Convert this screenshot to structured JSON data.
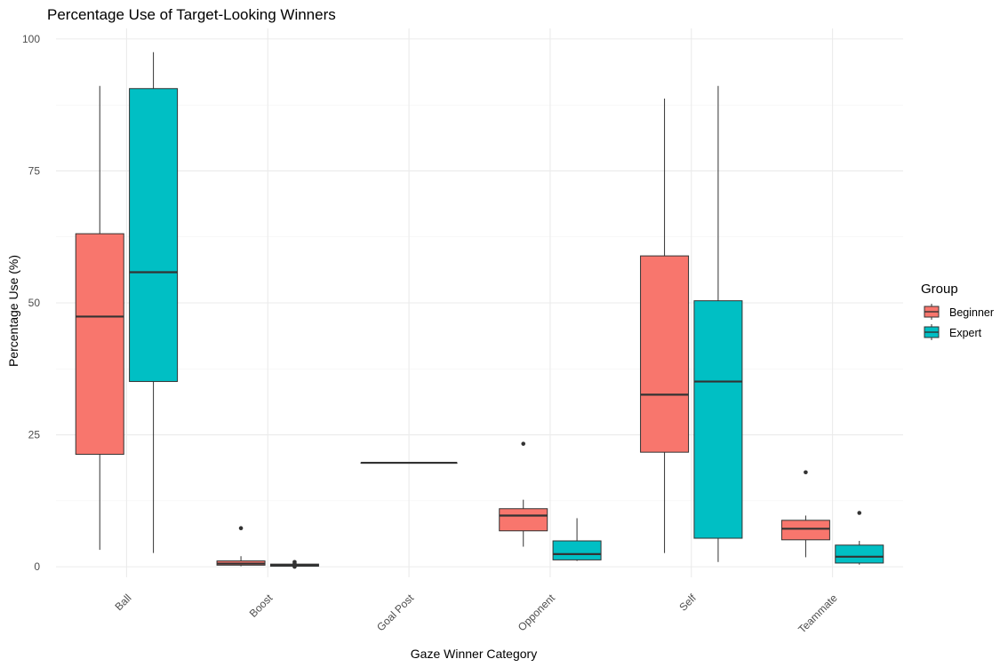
{
  "chart_data": {
    "type": "boxplot",
    "title": "Percentage Use of Target-Looking Winners",
    "xlabel": "Gaze Winner Category",
    "ylabel": "Percentage Use (%)",
    "ylim": [
      -2,
      102
    ],
    "yticks": [
      0,
      25,
      50,
      75,
      100
    ],
    "grid": true,
    "categories": [
      "Ball",
      "Boost",
      "Goal Post",
      "Opponent",
      "Self",
      "Teammate"
    ],
    "legend": {
      "title": "Group",
      "position": "right",
      "entries": [
        {
          "name": "Beginner",
          "color": "#F8766D"
        },
        {
          "name": "Expert",
          "color": "#00BFC4"
        }
      ]
    },
    "boxes": [
      {
        "category": "Ball",
        "group": "Beginner",
        "min": 3.2,
        "q1": 21.3,
        "median": 47.4,
        "q3": 63.1,
        "max": 91.1,
        "outliers": []
      },
      {
        "category": "Ball",
        "group": "Expert",
        "min": 2.6,
        "q1": 35.1,
        "median": 55.8,
        "q3": 90.6,
        "max": 97.5,
        "outliers": []
      },
      {
        "category": "Boost",
        "group": "Beginner",
        "min": 0.1,
        "q1": 0.3,
        "median": 0.6,
        "q3": 1.1,
        "max": 2.0,
        "outliers": [
          7.3
        ]
      },
      {
        "category": "Boost",
        "group": "Expert",
        "min": 0.0,
        "q1": 0.1,
        "median": 0.3,
        "q3": 0.5,
        "max": 0.7,
        "outliers": [
          0.0,
          0.3,
          0.6,
          0.9
        ]
      },
      {
        "category": "Goal Post",
        "group": "Beginner",
        "min": 19.7,
        "q1": 19.7,
        "median": 19.7,
        "q3": 19.7,
        "max": 19.7,
        "outliers": [],
        "full_width": true
      },
      {
        "category": "Opponent",
        "group": "Beginner",
        "min": 3.8,
        "q1": 6.8,
        "median": 9.7,
        "q3": 11.0,
        "max": 12.7,
        "outliers": [
          23.3
        ]
      },
      {
        "category": "Opponent",
        "group": "Expert",
        "min": 1.1,
        "q1": 1.3,
        "median": 2.4,
        "q3": 4.9,
        "max": 9.2,
        "outliers": []
      },
      {
        "category": "Self",
        "group": "Beginner",
        "min": 2.6,
        "q1": 21.7,
        "median": 32.6,
        "q3": 58.9,
        "max": 88.7,
        "outliers": []
      },
      {
        "category": "Self",
        "group": "Expert",
        "min": 0.9,
        "q1": 5.4,
        "median": 35.1,
        "q3": 50.4,
        "max": 91.1,
        "outliers": []
      },
      {
        "category": "Teammate",
        "group": "Beginner",
        "min": 1.8,
        "q1": 5.1,
        "median": 7.2,
        "q3": 8.8,
        "max": 9.7,
        "outliers": [
          17.9
        ]
      },
      {
        "category": "Teammate",
        "group": "Expert",
        "min": 0.4,
        "q1": 0.7,
        "median": 1.9,
        "q3": 4.1,
        "max": 4.9,
        "outliers": [
          10.2
        ]
      }
    ]
  }
}
